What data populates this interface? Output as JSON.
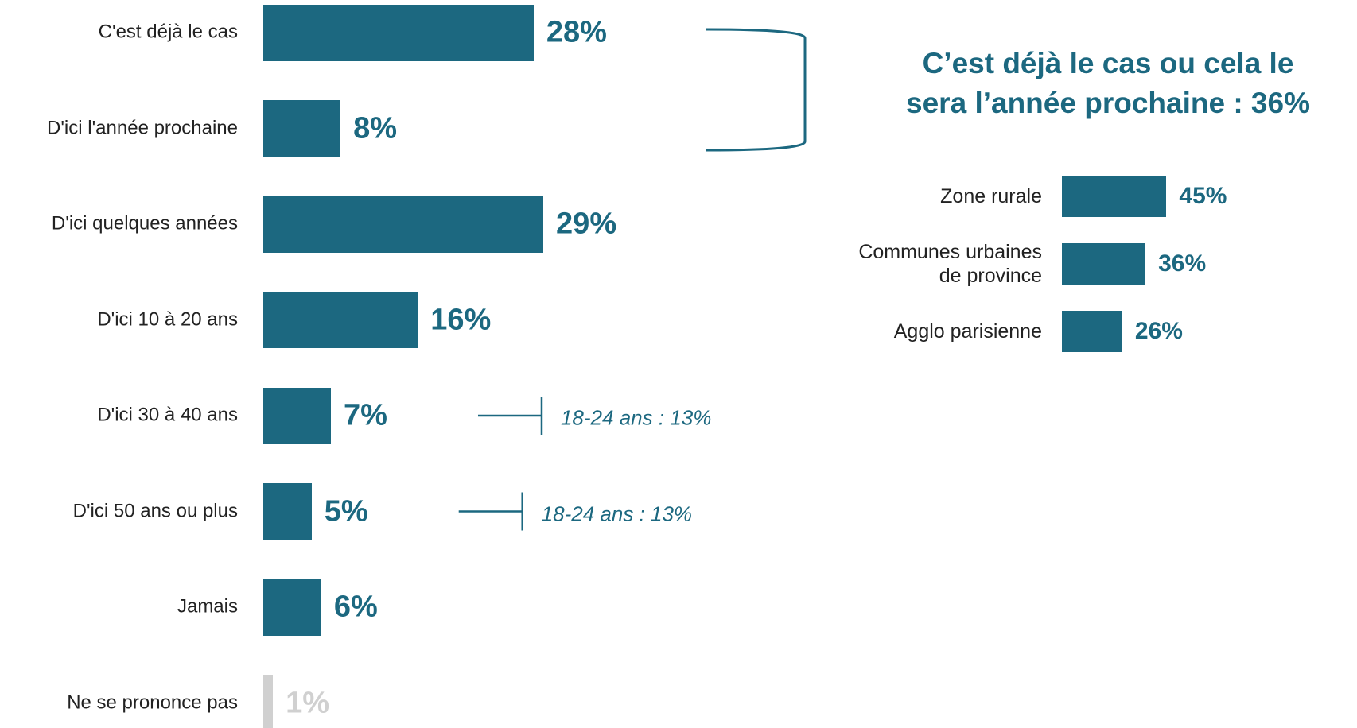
{
  "chart_data": [
    {
      "type": "bar",
      "categories": [
        "C'est déjà le cas",
        "D'ici l'année prochaine",
        "D'ici quelques années",
        "D'ici 10 à 20 ans",
        "D'ici 30 à 40 ans",
        "D'ici 50 ans ou plus",
        "Jamais",
        "Ne se prononce pas"
      ],
      "values": [
        28,
        8,
        29,
        16,
        7,
        5,
        6,
        1
      ],
      "value_labels": [
        "28%",
        "8%",
        "29%",
        "16%",
        "7%",
        "5%",
        "6%",
        "1%"
      ],
      "colors": [
        "#1c6880",
        "#1c6880",
        "#1c6880",
        "#1c6880",
        "#1c6880",
        "#1c6880",
        "#1c6880",
        "#d0d0d0"
      ],
      "annotations": [
        null,
        null,
        null,
        null,
        "18-24 ans : 13%",
        "18-24 ans : 13%",
        null,
        null
      ]
    },
    {
      "type": "bar",
      "title": "C’est déjà le cas ou cela le\nsera l’année prochaine : 36%",
      "categories": [
        "Zone rurale",
        "Communes urbaines\nde province",
        "Agglo parisienne"
      ],
      "values": [
        45,
        36,
        26
      ],
      "value_labels": [
        "45%",
        "36%",
        "26%"
      ],
      "color": "#1c6880"
    }
  ]
}
